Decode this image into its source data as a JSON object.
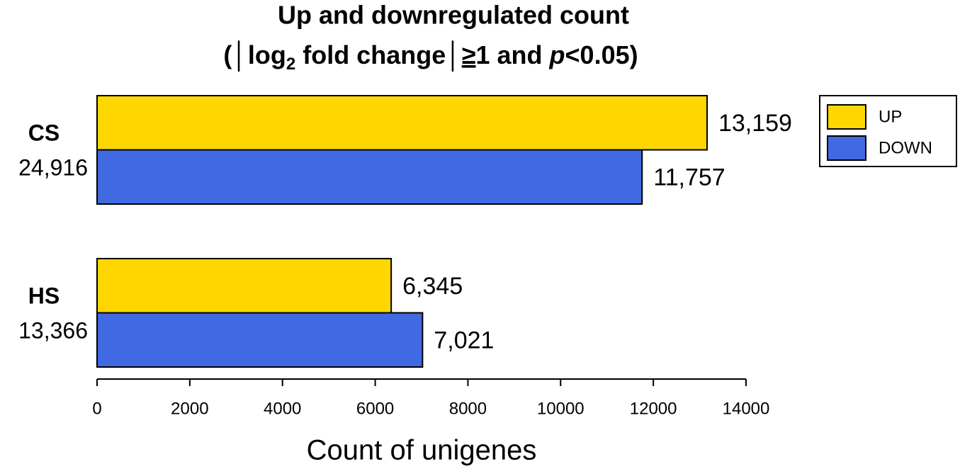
{
  "chart_data": {
    "type": "barh",
    "title": [
      "Up and downregulated count",
      [
        "(│log",
        "2",
        " fold change│",
        "≥",
        "1 and ",
        "p",
        "<0.05)"
      ]
    ],
    "categories": [
      "CS",
      "HS"
    ],
    "category_totals": [
      "24,916",
      "13,366"
    ],
    "series": [
      {
        "name": "UP",
        "color": "#ffd700",
        "values": [
          13159,
          6345
        ],
        "value_labels": [
          "13,159",
          "6,345"
        ]
      },
      {
        "name": "DOWN",
        "color": "#4169e1",
        "values": [
          11757,
          7021
        ],
        "value_labels": [
          "11,757",
          "7,021"
        ]
      }
    ],
    "xlabel": "Count of unigenes",
    "xlim": [
      0,
      14000
    ],
    "xticks": [
      0,
      2000,
      4000,
      6000,
      8000,
      10000,
      12000,
      14000
    ],
    "legend": "right"
  }
}
